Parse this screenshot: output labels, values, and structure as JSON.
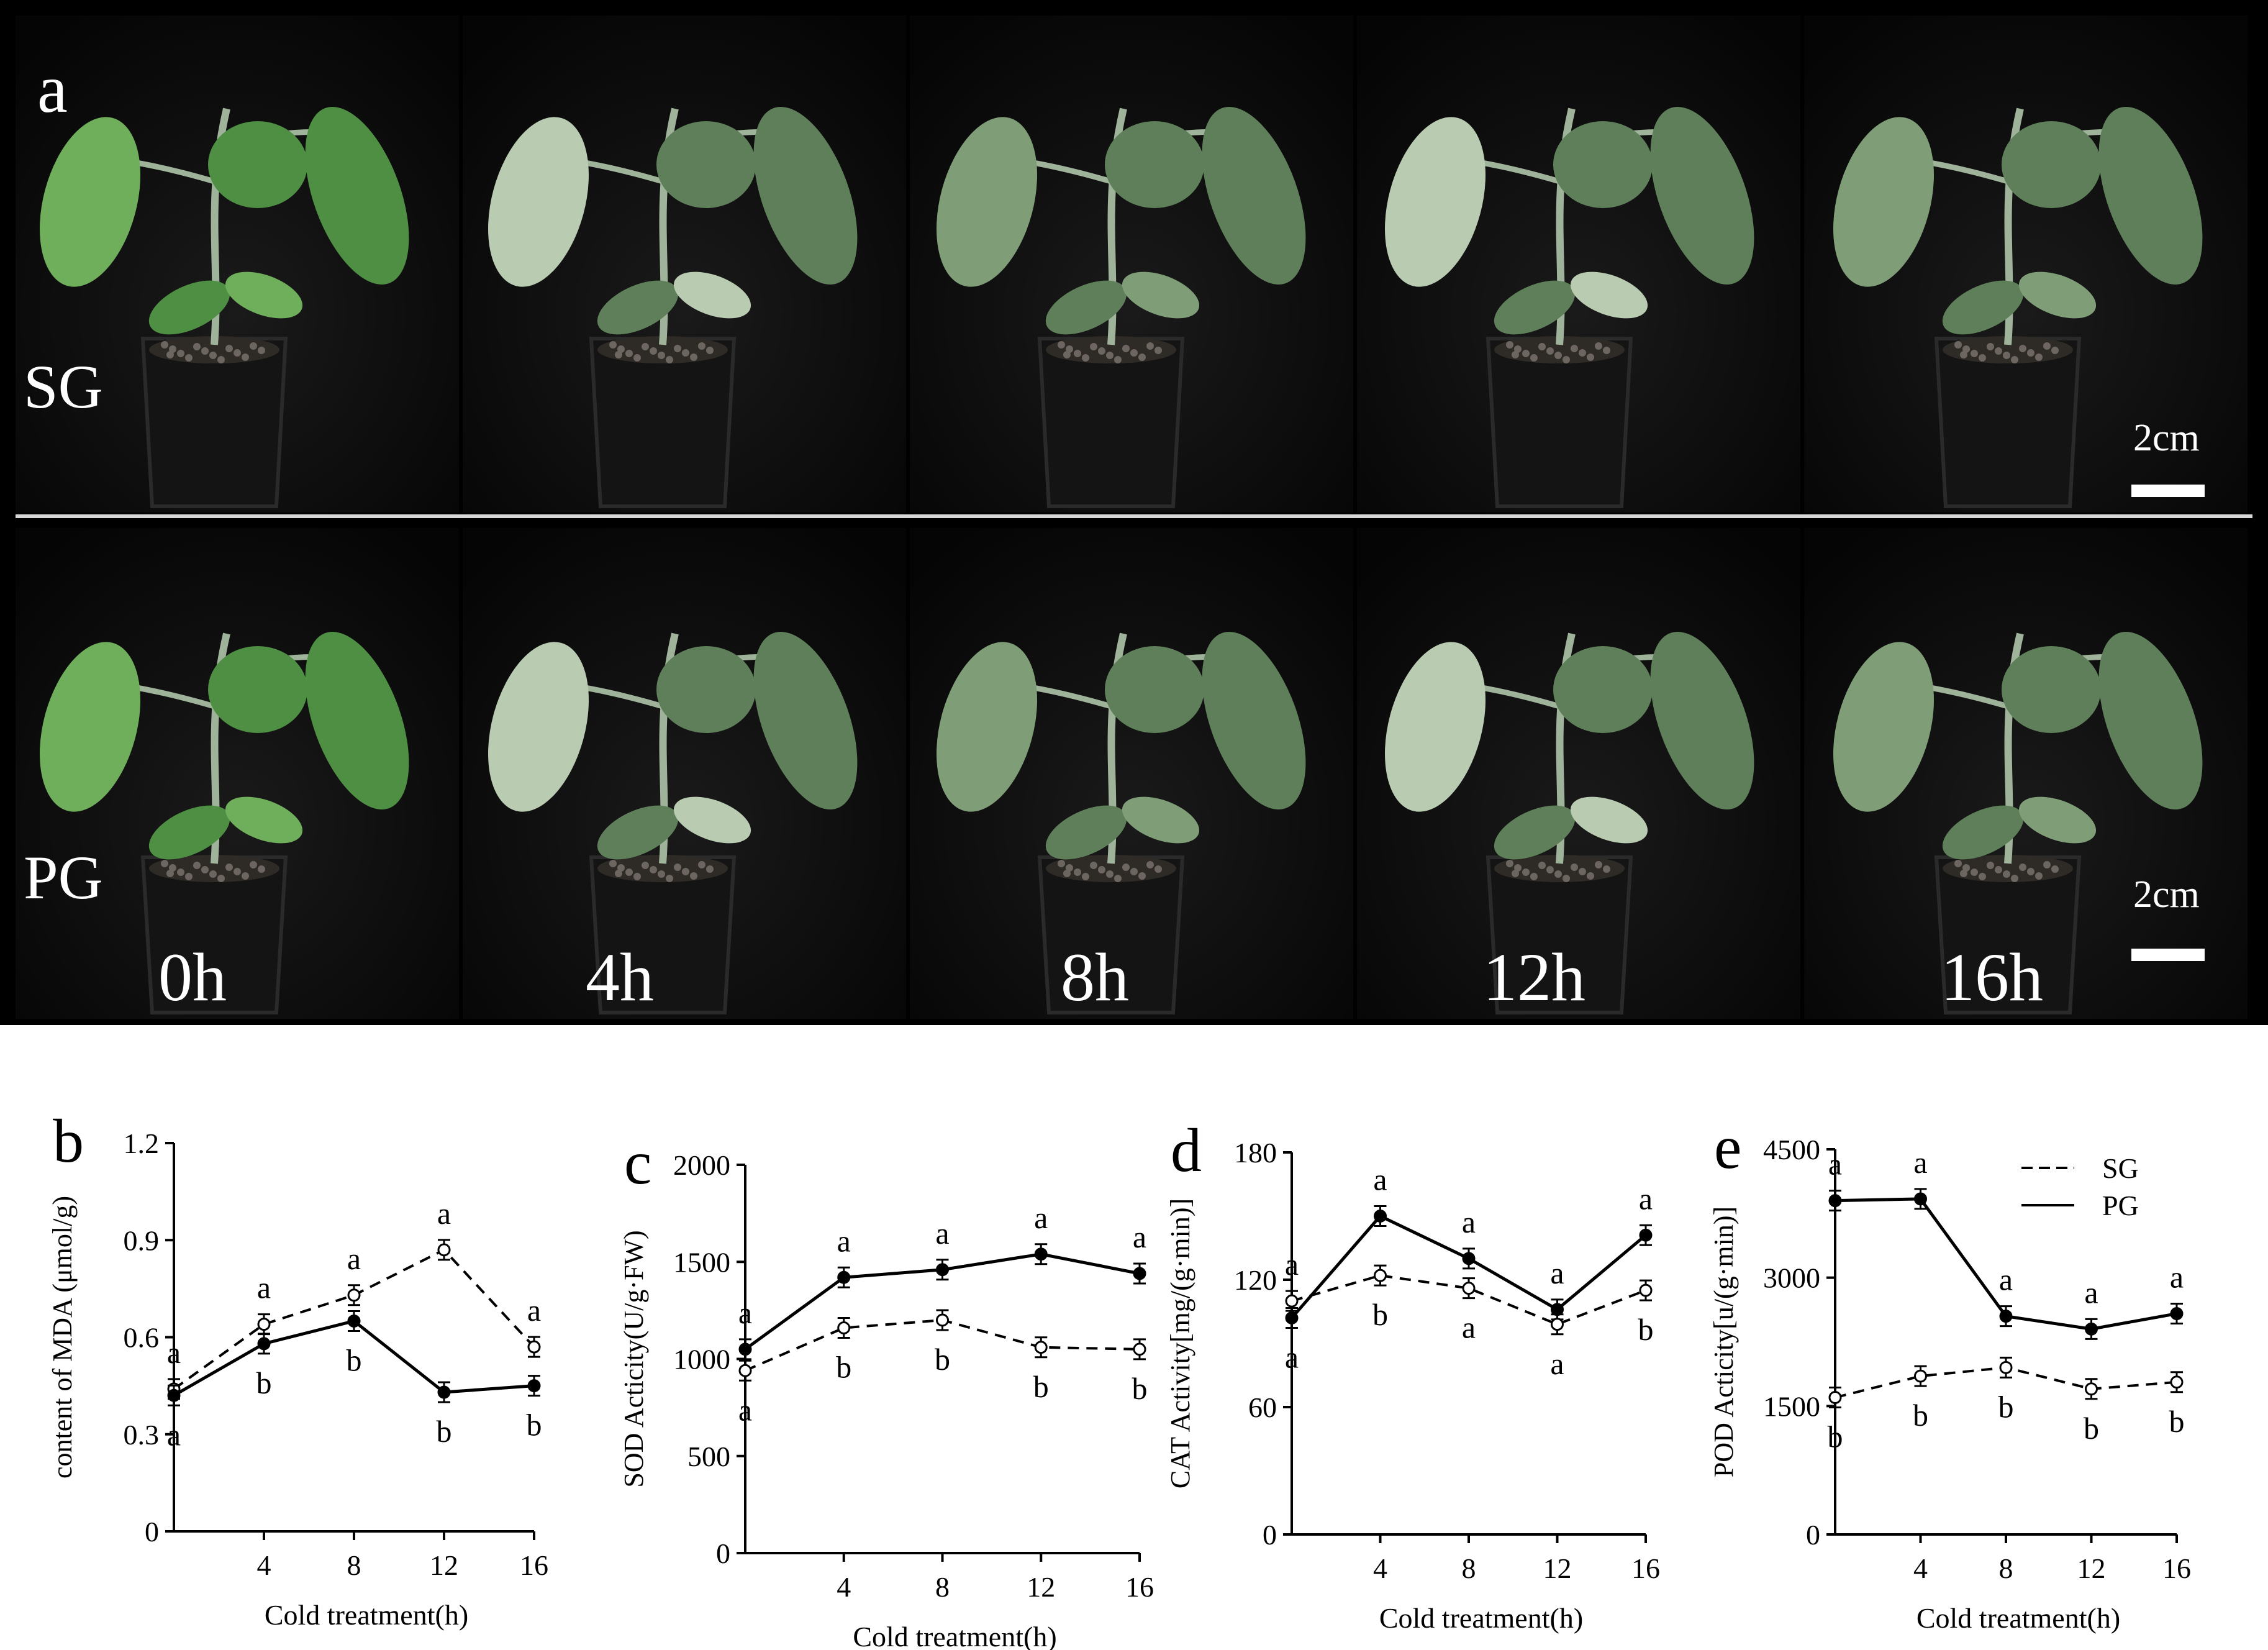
{
  "figure": {
    "panel_a": {
      "letter": "a",
      "rows": [
        "SG",
        "PG"
      ],
      "time_labels": [
        "0h",
        "4h",
        "8h",
        "12h",
        "16h"
      ],
      "scale_bar_label": "2cm"
    }
  },
  "chart_data": [
    {
      "type": "line",
      "panel": "b",
      "ylabel": "content of MDA (μmol/g)",
      "xlabel": "Cold treatment(h)",
      "xticks": [
        "4",
        "8",
        "12",
        "16"
      ],
      "yticks": [
        "0",
        "0.3",
        "0.6",
        "0.9",
        "1.2"
      ],
      "ylim": [
        0,
        1.2
      ],
      "x": [
        0,
        4,
        8,
        12,
        16
      ],
      "series": [
        {
          "values": [
            0.44,
            0.64,
            0.73,
            0.87,
            0.57
          ],
          "line": "dashed",
          "marker": "open",
          "letters": [
            "a",
            "a",
            "a",
            "a",
            "a"
          ]
        },
        {
          "values": [
            0.42,
            0.58,
            0.65,
            0.43,
            0.45
          ],
          "line": "solid",
          "marker": "filled",
          "letters": [
            "a",
            "b",
            "b",
            "b",
            "b"
          ]
        }
      ]
    },
    {
      "type": "line",
      "panel": "c",
      "ylabel": "SOD Acticity(U/g·FW)",
      "xlabel": "Cold treatment(h)",
      "xticks": [
        "4",
        "8",
        "12",
        "16"
      ],
      "yticks": [
        "0",
        "500",
        "1000",
        "1500",
        "2000"
      ],
      "ylim": [
        0,
        2000
      ],
      "x": [
        0,
        4,
        8,
        12,
        16
      ],
      "series": [
        {
          "values": [
            1050,
            1420,
            1460,
            1540,
            1440
          ],
          "line": "solid",
          "marker": "filled",
          "letters": [
            "a",
            "a",
            "a",
            "a",
            "a"
          ]
        },
        {
          "values": [
            940,
            1160,
            1200,
            1060,
            1050
          ],
          "line": "dashed",
          "marker": "open",
          "letters": [
            "a",
            "b",
            "b",
            "b",
            "b"
          ]
        }
      ]
    },
    {
      "type": "line",
      "panel": "d",
      "ylabel": "CAT Activity[mg/(g·min)]",
      "xlabel": "Cold treatment(h)",
      "xticks": [
        "4",
        "8",
        "12",
        "16"
      ],
      "yticks": [
        "0",
        "60",
        "120",
        "180"
      ],
      "ylim": [
        0,
        180
      ],
      "x": [
        0,
        4,
        8,
        12,
        16
      ],
      "series": [
        {
          "values": [
            102,
            150,
            130,
            106,
            141
          ],
          "line": "solid",
          "marker": "filled",
          "letters": [
            "a",
            "a",
            "a",
            "a",
            "a"
          ]
        },
        {
          "values": [
            110,
            122,
            116,
            99,
            115
          ],
          "line": "dashed",
          "marker": "open",
          "letters": [
            "a",
            "b",
            "a",
            "a",
            "b"
          ]
        }
      ]
    },
    {
      "type": "line",
      "panel": "e",
      "ylabel": "POD Acticity[u/(g·min)]",
      "xlabel": "Cold treatment(h)",
      "xticks": [
        "4",
        "8",
        "12",
        "16"
      ],
      "yticks": [
        "0",
        "1500",
        "3000",
        "4500"
      ],
      "ylim": [
        0,
        4500
      ],
      "x": [
        0,
        4,
        8,
        12,
        16
      ],
      "legend": {
        "placement": "top-right",
        "entries": [
          {
            "name": "SG",
            "line": "dashed"
          },
          {
            "name": "PG",
            "line": "solid"
          }
        ]
      },
      "series": [
        {
          "name": "SG",
          "values": [
            1600,
            1850,
            1950,
            1700,
            1780
          ],
          "line": "dashed",
          "marker": "open",
          "letters": [
            "b",
            "b",
            "b",
            "b",
            "b"
          ]
        },
        {
          "name": "PG",
          "values": [
            3900,
            3920,
            2550,
            2400,
            2580
          ],
          "line": "solid",
          "marker": "filled",
          "letters": [
            "a",
            "a",
            "a",
            "a",
            "a"
          ]
        }
      ]
    }
  ]
}
